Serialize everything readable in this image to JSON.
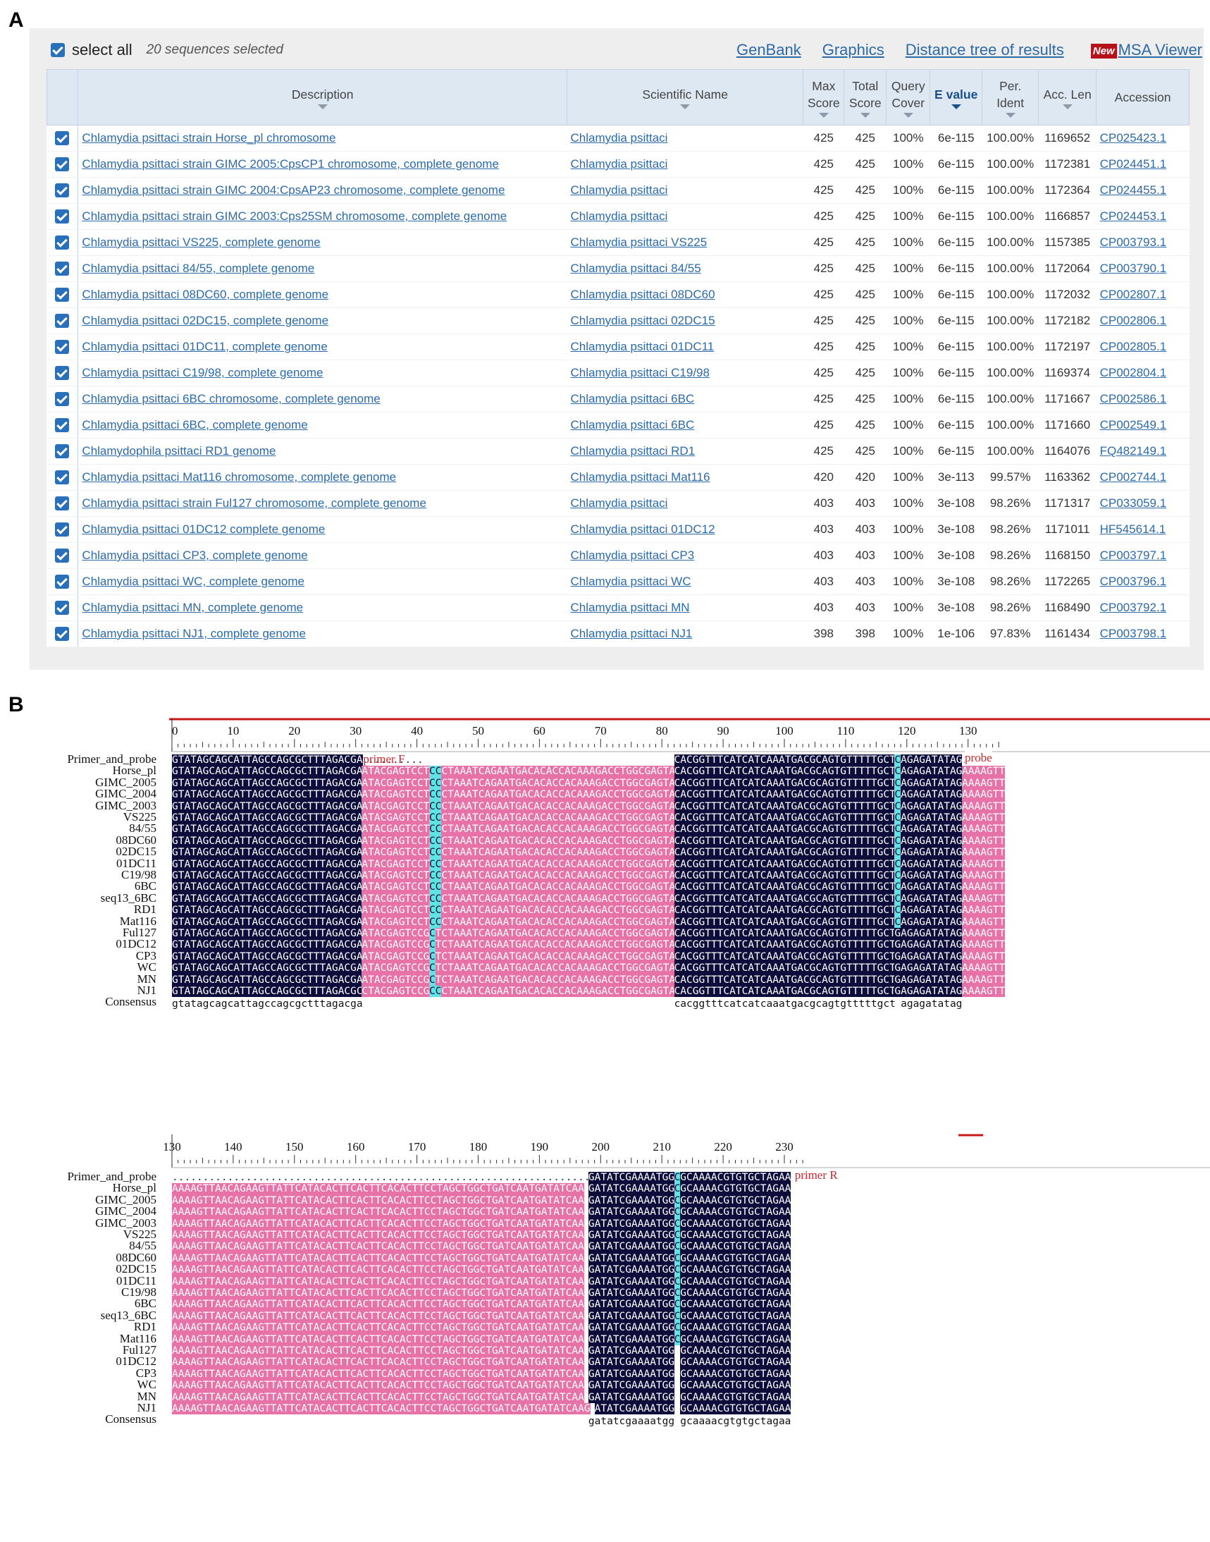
{
  "panels": {
    "a": "A",
    "b": "B"
  },
  "panelA": {
    "select_all_label": "select all",
    "selected_count": "20 sequences selected",
    "links": {
      "genbank": "GenBank",
      "graphics": "Graphics",
      "distance_tree": "Distance tree of results",
      "new_badge": "New",
      "msa_viewer": "MSA Viewer"
    },
    "columns": [
      "Description",
      "Scientific Name",
      "Max Score",
      "Total Score",
      "Query Cover",
      "E value",
      "Per. Ident",
      "Acc. Len",
      "Accession"
    ],
    "rows": [
      [
        "Chlamydia psittaci strain Horse_pl chromosome",
        "Chlamydia psittaci",
        "425",
        "425",
        "100%",
        "6e-115",
        "100.00%",
        "1169652",
        "CP025423.1"
      ],
      [
        "Chlamydia psittaci strain GIMC 2005:CpsCP1 chromosome, complete genome",
        "Chlamydia psittaci",
        "425",
        "425",
        "100%",
        "6e-115",
        "100.00%",
        "1172381",
        "CP024451.1"
      ],
      [
        "Chlamydia psittaci strain GIMC 2004:CpsAP23 chromosome, complete genome",
        "Chlamydia psittaci",
        "425",
        "425",
        "100%",
        "6e-115",
        "100.00%",
        "1172364",
        "CP024455.1"
      ],
      [
        "Chlamydia psittaci strain GIMC 2003:Cps25SM chromosome, complete genome",
        "Chlamydia psittaci",
        "425",
        "425",
        "100%",
        "6e-115",
        "100.00%",
        "1166857",
        "CP024453.1"
      ],
      [
        "Chlamydia psittaci VS225, complete genome",
        "Chlamydia psittaci VS225",
        "425",
        "425",
        "100%",
        "6e-115",
        "100.00%",
        "1157385",
        "CP003793.1"
      ],
      [
        "Chlamydia psittaci 84/55, complete genome",
        "Chlamydia psittaci 84/55",
        "425",
        "425",
        "100%",
        "6e-115",
        "100.00%",
        "1172064",
        "CP003790.1"
      ],
      [
        "Chlamydia psittaci 08DC60, complete genome",
        "Chlamydia psittaci 08DC60",
        "425",
        "425",
        "100%",
        "6e-115",
        "100.00%",
        "1172032",
        "CP002807.1"
      ],
      [
        "Chlamydia psittaci 02DC15, complete genome",
        "Chlamydia psittaci 02DC15",
        "425",
        "425",
        "100%",
        "6e-115",
        "100.00%",
        "1172182",
        "CP002806.1"
      ],
      [
        "Chlamydia psittaci 01DC11, complete genome",
        "Chlamydia psittaci 01DC11",
        "425",
        "425",
        "100%",
        "6e-115",
        "100.00%",
        "1172197",
        "CP002805.1"
      ],
      [
        "Chlamydia psittaci C19/98, complete genome",
        "Chlamydia psittaci C19/98",
        "425",
        "425",
        "100%",
        "6e-115",
        "100.00%",
        "1169374",
        "CP002804.1"
      ],
      [
        "Chlamydia psittaci 6BC chromosome, complete genome",
        "Chlamydia psittaci 6BC",
        "425",
        "425",
        "100%",
        "6e-115",
        "100.00%",
        "1171667",
        "CP002586.1"
      ],
      [
        "Chlamydia psittaci 6BC, complete genome",
        "Chlamydia psittaci 6BC",
        "425",
        "425",
        "100%",
        "6e-115",
        "100.00%",
        "1171660",
        "CP002549.1"
      ],
      [
        "Chlamydophila psittaci RD1 genome",
        "Chlamydia psittaci RD1",
        "425",
        "425",
        "100%",
        "6e-115",
        "100.00%",
        "1164076",
        "FQ482149.1"
      ],
      [
        "Chlamydia psittaci Mat116 chromosome, complete genome",
        "Chlamydia psittaci Mat116",
        "420",
        "420",
        "100%",
        "3e-113",
        "99.57%",
        "1163362",
        "CP002744.1"
      ],
      [
        "Chlamydia psittaci strain Ful127 chromosome, complete genome",
        "Chlamydia psittaci",
        "403",
        "403",
        "100%",
        "3e-108",
        "98.26%",
        "1171317",
        "CP033059.1"
      ],
      [
        "Chlamydia psittaci 01DC12 complete genome",
        "Chlamydia psittaci 01DC12",
        "403",
        "403",
        "100%",
        "3e-108",
        "98.26%",
        "1171011",
        "HF545614.1"
      ],
      [
        "Chlamydia psittaci CP3, complete genome",
        "Chlamydia psittaci CP3",
        "403",
        "403",
        "100%",
        "3e-108",
        "98.26%",
        "1168150",
        "CP003797.1"
      ],
      [
        "Chlamydia psittaci WC, complete genome",
        "Chlamydia psittaci WC",
        "403",
        "403",
        "100%",
        "3e-108",
        "98.26%",
        "1172265",
        "CP003796.1"
      ],
      [
        "Chlamydia psittaci MN, complete genome",
        "Chlamydia psittaci MN",
        "403",
        "403",
        "100%",
        "3e-108",
        "98.26%",
        "1168490",
        "CP003792.1"
      ],
      [
        "Chlamydia psittaci NJ1, complete genome",
        "Chlamydia psittaci NJ1",
        "398",
        "398",
        "100%",
        "1e-106",
        "97.83%",
        "1161434",
        "CP003798.1"
      ]
    ]
  },
  "panelB": {
    "names": [
      "Primer_and_probe",
      "Horse_pl",
      "GIMC_2005",
      "GIMC_2004",
      "GIMC_2003",
      "VS225",
      "84/55",
      "08DC60",
      "02DC15",
      "01DC11",
      "C19/98",
      "6BC",
      "seq13_6BC",
      "RD1",
      "Mat116",
      "Ful127",
      "01DC12",
      "CP3",
      "WC",
      "MN",
      "NJ1",
      "Consensus"
    ],
    "block1": {
      "ruler_labels": [
        "0",
        "10",
        "20",
        "30",
        "40",
        "50",
        "60",
        "70",
        "80",
        "90",
        "100",
        "110",
        "120",
        "130"
      ],
      "primer_segments": [
        "GTATAGCAGCATTAGCCAGCGCTTTAGACGA",
        "..........",
        "CACGGTTTCATCATCAAATGACGCAGTGTTTTTGCT",
        "C",
        "AGAGATATAG",
        "....."
      ],
      "annotation_primer_f": "primer F",
      "annotation_probe": "probe",
      "rows": [
        [
          "GTATAGCAGCATTAGCCAGCGCTTTAGACGA",
          "ATACGAGTCCT",
          "C",
          "C",
          "CTAAATCAGAATGACACACCACAAAGACCTGGCGAGTA",
          "CACGGTTTCATCATCAAATGACGCAGTGTTTTTGCT",
          "C",
          "AGAGATATAG",
          "AAAAGTT"
        ],
        [
          "GTATAGCAGCATTAGCCAGCGCTTTAGACGA",
          "ATACGAGTCCT",
          "C",
          "C",
          "CTAAATCAGAATGACACACCACAAAGACCTGGCGAGTA",
          "CACGGTTTCATCATCAAATGACGCAGTGTTTTTGCT",
          "C",
          "AGAGATATAG",
          "AAAAGTT"
        ],
        [
          "GTATAGCAGCATTAGCCAGCGCTTTAGACGA",
          "ATACGAGTCCT",
          "C",
          "C",
          "CTAAATCAGAATGACACACCACAAAGACCTGGCGAGTA",
          "CACGGTTTCATCATCAAATGACGCAGTGTTTTTGCT",
          "C",
          "AGAGATATAG",
          "AAAAGTT"
        ],
        [
          "GTATAGCAGCATTAGCCAGCGCTTTAGACGA",
          "ATACGAGTCCT",
          "C",
          "C",
          "CTAAATCAGAATGACACACCACAAAGACCTGGCGAGTA",
          "CACGGTTTCATCATCAAATGACGCAGTGTTTTTGCT",
          "C",
          "AGAGATATAG",
          "AAAAGTT"
        ],
        [
          "GTATAGCAGCATTAGCCAGCGCTTTAGACGA",
          "ATACGAGTCCT",
          "C",
          "C",
          "CTAAATCAGAATGACACACCACAAAGACCTGGCGAGTA",
          "CACGGTTTCATCATCAAATGACGCAGTGTTTTTGCT",
          "C",
          "AGAGATATAG",
          "AAAAGTT"
        ],
        [
          "GTATAGCAGCATTAGCCAGCGCTTTAGACGA",
          "ATACGAGTCCT",
          "C",
          "C",
          "CTAAATCAGAATGACACACCACAAAGACCTGGCGAGTA",
          "CACGGTTTCATCATCAAATGACGCAGTGTTTTTGCT",
          "C",
          "AGAGATATAG",
          "AAAAGTT"
        ],
        [
          "GTATAGCAGCATTAGCCAGCGCTTTAGACGA",
          "ATACGAGTCCT",
          "C",
          "C",
          "CTAAATCAGAATGACACACCACAAAGACCTGGCGAGTA",
          "CACGGTTTCATCATCAAATGACGCAGTGTTTTTGCT",
          "C",
          "AGAGATATAG",
          "AAAAGTT"
        ],
        [
          "GTATAGCAGCATTAGCCAGCGCTTTAGACGA",
          "ATACGAGTCCT",
          "C",
          "C",
          "CTAAATCAGAATGACACACCACAAAGACCTGGCGAGTA",
          "CACGGTTTCATCATCAAATGACGCAGTGTTTTTGCT",
          "C",
          "AGAGATATAG",
          "AAAAGTT"
        ],
        [
          "GTATAGCAGCATTAGCCAGCGCTTTAGACGA",
          "ATACGAGTCCT",
          "C",
          "C",
          "CTAAATCAGAATGACACACCACAAAGACCTGGCGAGTA",
          "CACGGTTTCATCATCAAATGACGCAGTGTTTTTGCT",
          "C",
          "AGAGATATAG",
          "AAAAGTT"
        ],
        [
          "GTATAGCAGCATTAGCCAGCGCTTTAGACGA",
          "ATACGAGTCCT",
          "C",
          "C",
          "CTAAATCAGAATGACACACCACAAAGACCTGGCGAGTA",
          "CACGGTTTCATCATCAAATGACGCAGTGTTTTTGCT",
          "C",
          "AGAGATATAG",
          "AAAAGTT"
        ],
        [
          "GTATAGCAGCATTAGCCAGCGCTTTAGACGA",
          "ATACGAGTCCT",
          "C",
          "C",
          "CTAAATCAGAATGACACACCACAAAGACCTGGCGAGTA",
          "CACGGTTTCATCATCAAATGACGCAGTGTTTTTGCT",
          "C",
          "AGAGATATAG",
          "AAAAGTT"
        ],
        [
          "GTATAGCAGCATTAGCCAGCGCTTTAGACGA",
          "ATACGAGTCCT",
          "C",
          "C",
          "CTAAATCAGAATGACACACCACAAAGACCTGGCGAGTA",
          "CACGGTTTCATCATCAAATGACGCAGTGTTTTTGCT",
          "C",
          "AGAGATATAG",
          "AAAAGTT"
        ],
        [
          "GTATAGCAGCATTAGCCAGCGCTTTAGACGA",
          "ATACGAGTCCT",
          "C",
          "C",
          "CTAAATCAGAATGACACACCACAAAGACCTGGCGAGTA",
          "CACGGTTTCATCATCAAATGACGCAGTGTTTTTGCT",
          "C",
          "AGAGATATAG",
          "AAAAGTT"
        ],
        [
          "GTATAGCAGCATTAGCCAGCGCTTTAGACGA",
          "ATACGAGTCCT",
          "C",
          "C",
          "CTAAATCAGAATGACACACCACAAAGACCTGGCGAGTA",
          "CACGGTTTCATCATCAAATGACGCAGTGTTTTTGCT",
          "C",
          "AGAGATATAG",
          "AAAAGTT"
        ],
        [
          "GTATAGCAGCATTAGCCAGCGCTTTAGACGA",
          "ATACGAGTCCG",
          "C",
          "T",
          "CTAAATCAGAATGACACACCACAAAGACCTGGCGAGTA",
          "CACGGTTTCATCATCAAATGACGCAGTGTTTTTGCT",
          "G",
          "AGAGATATAG",
          "AAAAGTT"
        ],
        [
          "GTATAGCAGCATTAGCCAGCGCTTTAGACGA",
          "ATACGAGTCCG",
          "C",
          "T",
          "CTAAATCAGAATGACACACCACAAAGACCTGGCGAGTA",
          "CACGGTTTCATCATCAAATGACGCAGTGTTTTTGCT",
          "G",
          "AGAGATATAG",
          "AAAAGTT"
        ],
        [
          "GTATAGCAGCATTAGCCAGCGCTTTAGACGA",
          "ATACGAGTCCG",
          "C",
          "T",
          "CTAAATCAGAATGACACACCACAAAGACCTGGCGAGTA",
          "CACGGTTTCATCATCAAATGACGCAGTGTTTTTGCT",
          "G",
          "AGAGATATAG",
          "AAAAGTT"
        ],
        [
          "GTATAGCAGCATTAGCCAGCGCTTTAGACGA",
          "ATACGAGTCCG",
          "C",
          "T",
          "CTAAATCAGAATGACACACCACAAAGACCTGGCGAGTA",
          "CACGGTTTCATCATCAAATGACGCAGTGTTTTTGCT",
          "G",
          "AGAGATATAG",
          "AAAAGTT"
        ],
        [
          "GTATAGCAGCATTAGCCAGCGCTTTAGACGA",
          "ATACGAGTCCG",
          "C",
          "T",
          "CTAAATCAGAATGACACACCACAAAGACCTGGCGAGTA",
          "CACGGTTTCATCATCAAATGACGCAGTGTTTTTGCT",
          "G",
          "AGAGATATAG",
          "AAAAGTT"
        ],
        [
          "GTATAGCAGCATTAGCCAGCGCTTTAGACGC",
          "CTACGAGTCCG",
          "C",
          "C",
          "CTAAATCAGAATGACACACCACAAAGACCTGGCGAGTA",
          "CACGGTTTCATCATCAAATGACGCAGTGTTTTTGCT",
          "G",
          "AGAGATATAG",
          "AAAAGTT"
        ]
      ],
      "consensus": [
        "gtatagcagcattagccagcgctttagacga",
        "cacggtttcatcatcaaatgacgcagtgtttttgct",
        "agagatatag"
      ]
    },
    "block2": {
      "ruler_labels": [
        "130",
        "140",
        "150",
        "160",
        "170",
        "180",
        "190",
        "200",
        "210",
        "220",
        "230"
      ],
      "primer_segments": [
        "...........................................................................",
        "GATATCGAAAATGG",
        "C",
        "GCAAAACGTGTGCTAGAA"
      ],
      "annotation_primer_r": "primer R",
      "pink_main": "AAAAGTTAACAGAAGTTATTCATACACTTCACTTCACACTTCCTAGCTGGCTGATCAATGATATCAA",
      "pink_nj1": "AAAAGTTAACAGAAGTTATTCATACACTTCACTTCACACTTCCTAGCTGGCTGATCAATGATATCAAG",
      "dark_a": "GATATCGAAAATGG",
      "dark_b": "GCAAAACGTGTGCTAGAA",
      "nj1_dark_a": "ATATCGAAAATGG",
      "mid_bases": [
        "C",
        "C",
        "C",
        "C",
        "C",
        "C",
        "C",
        "C",
        "C",
        "C",
        "C",
        "C",
        "C",
        "C",
        "A",
        "A",
        "A",
        "A",
        "A",
        "A"
      ],
      "consensus": [
        "gatatcgaaaatgg",
        "gcaaaacgtgtgctagaa"
      ]
    }
  }
}
